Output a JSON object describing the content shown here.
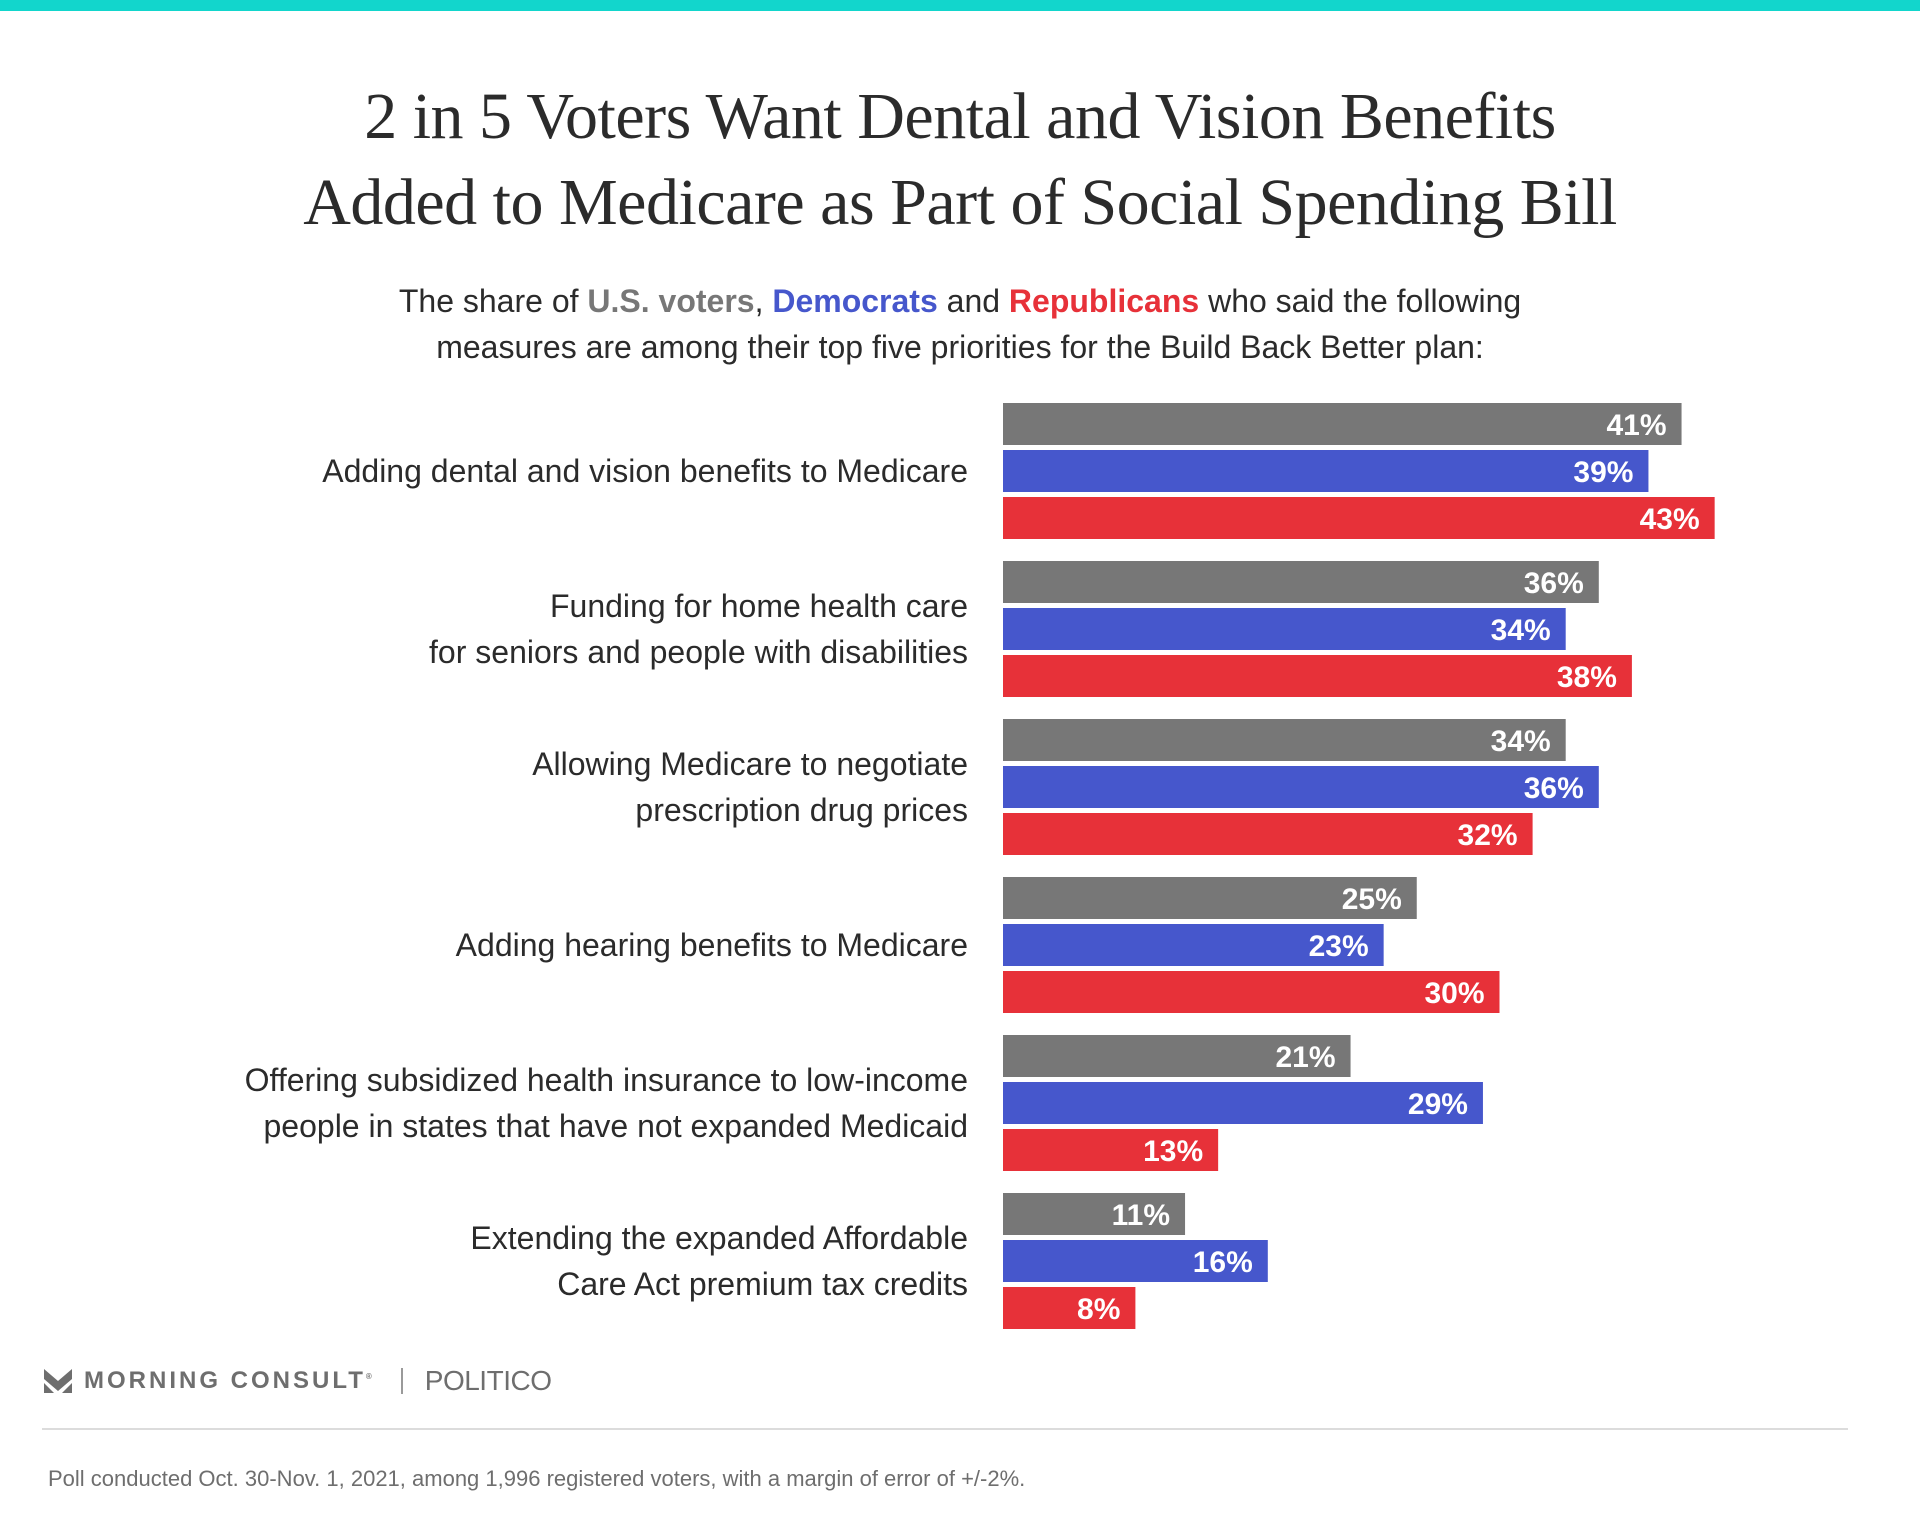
{
  "colors": {
    "top_bar": "#12d6cc",
    "all_voters": "#777777",
    "democrats": "#4657cc",
    "republicans": "#e73139",
    "text": "#2b2b2b",
    "muted": "#6e6e6e"
  },
  "header": {
    "title_line1": "2 in 5 Voters Want Dental and Vision Benefits",
    "title_line2": "Added to Medicare as Part of Social Spending Bill",
    "subtitle": {
      "pre": "The share of ",
      "voters": "U.S. voters",
      "comma": ", ",
      "democrats": "Democrats",
      "and": " and ",
      "republicans": "Republicans",
      "post_line1": " who said the following",
      "line2": "measures are among their top five priorities for the Build Back Better plan:"
    }
  },
  "chart_data": {
    "type": "bar",
    "orientation": "horizontal",
    "title": "2 in 5 Voters Want Dental and Vision Benefits Added to Medicare as Part of Social Spending Bill",
    "xlabel": "",
    "ylabel": "",
    "unit": "%",
    "xlim": [
      0,
      43
    ],
    "grid": false,
    "legend": "inline-in-subtitle",
    "categories": [
      [
        "Adding dental and vision benefits to Medicare"
      ],
      [
        "Funding for home health care",
        "for seniors and people with disabilities"
      ],
      [
        "Allowing Medicare to negotiate",
        "prescription drug prices"
      ],
      [
        "Adding hearing benefits to Medicare"
      ],
      [
        "Offering subsidized health insurance to low-income",
        "people in states that have not expanded Medicaid"
      ],
      [
        "Extending the expanded Affordable",
        "Care Act premium tax credits"
      ]
    ],
    "series": [
      {
        "name": "U.S. voters",
        "color": "#777777",
        "values": [
          41,
          36,
          34,
          25,
          21,
          11
        ]
      },
      {
        "name": "Democrats",
        "color": "#4657cc",
        "values": [
          39,
          34,
          36,
          23,
          29,
          16
        ]
      },
      {
        "name": "Republicans",
        "color": "#e73139",
        "values": [
          43,
          38,
          32,
          30,
          13,
          8
        ]
      }
    ]
  },
  "footer": {
    "brand": "MORNING CONSULT",
    "reg_mark": "®",
    "partner": "POLITICO",
    "note": "Poll conducted Oct. 30-Nov. 1, 2021, among 1,996 registered voters, with a margin of error of +/-2%."
  }
}
